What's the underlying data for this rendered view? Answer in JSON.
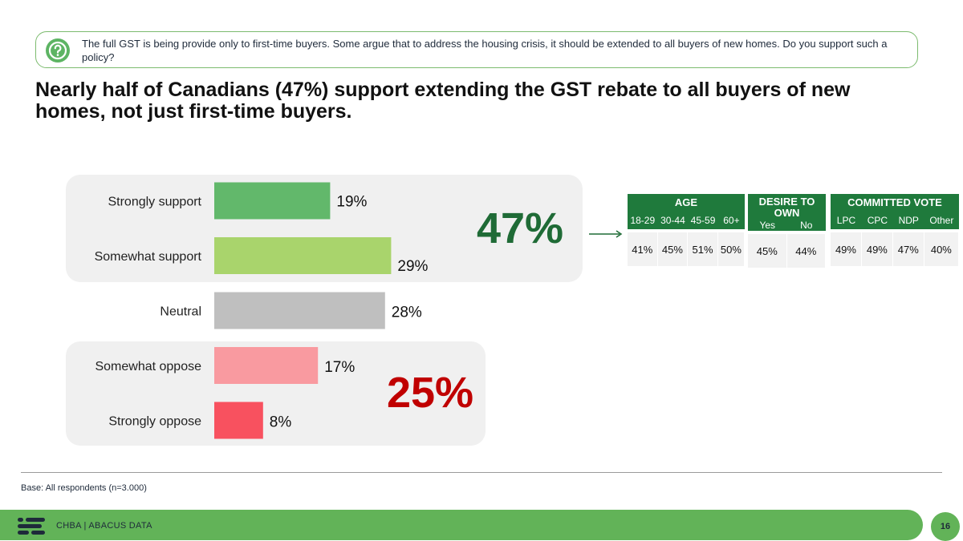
{
  "question": {
    "text": "The full GST is being provide only to first-time buyers. Some argue that to address the housing crisis, it should be extended to all buyers of new homes. Do you support such a policy?"
  },
  "headline": "Nearly half of Canadians (47%) support extending the GST rebate to all buyers of new homes, not just first-time buyers.",
  "chart_data": {
    "type": "bar",
    "orientation": "horizontal",
    "categories": [
      "Strongly support",
      "Somewhat support",
      "Neutral",
      "Somewhat oppose",
      "Strongly oppose"
    ],
    "values": [
      19,
      29,
      28,
      17,
      8
    ],
    "value_labels": [
      "19%",
      "29%",
      "28%",
      "17%",
      "8%"
    ],
    "colors": [
      "#62b86b",
      "#a9d46c",
      "#bfbfbf",
      "#f99aa0",
      "#f8515f"
    ],
    "xlim": [
      0,
      40
    ],
    "net_support": "47%",
    "net_oppose": "25%",
    "net_support_color": "#1f6b36",
    "net_oppose_color": "#c00000"
  },
  "demographics": {
    "age": {
      "title": "AGE",
      "columns": [
        "18-29",
        "30-44",
        "45-59",
        "60+"
      ],
      "values": [
        "41%",
        "45%",
        "51%",
        "50%"
      ]
    },
    "desire": {
      "title": "DESIRE TO OWN",
      "columns": [
        "Yes",
        "No"
      ],
      "values": [
        "45%",
        "44%"
      ]
    },
    "vote": {
      "title": "COMMITTED VOTE",
      "columns": [
        "LPC",
        "CPC",
        "NDP",
        "Other"
      ],
      "values": [
        "49%",
        "49%",
        "47%",
        "40%"
      ]
    }
  },
  "footer": {
    "base_note": "Base: All respondents (n=3.000)",
    "brand": "CHBA  |  ABACUS DATA",
    "page_number": "16"
  },
  "colors": {
    "accent_green": "#62b358",
    "table_green": "#1f7a3c"
  }
}
